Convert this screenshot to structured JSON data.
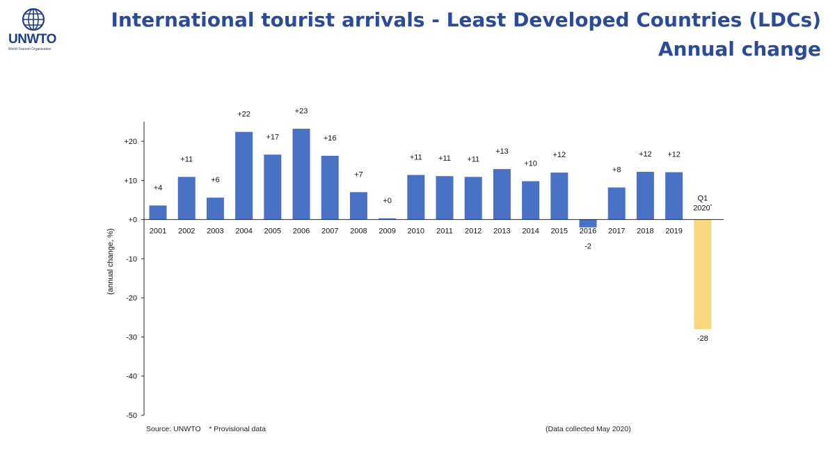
{
  "logo": {
    "text": "UNWTO",
    "subtitle": "World Tourism Organization",
    "icon": "globe-laurel-icon"
  },
  "title_line1": "International tourist arrivals - Least Developed Countries (LDCs)",
  "title_line2": "Annual change",
  "source": "Source: UNWTO",
  "note": "* Provisional data",
  "collected": "(Data collected May 2020)",
  "colors": {
    "bar": "#4a72c4",
    "highlight": "#f9d77c",
    "title": "#2a4a9a"
  },
  "chart_data": {
    "type": "bar",
    "categories": [
      "2001",
      "2002",
      "2003",
      "2004",
      "2005",
      "2006",
      "2007",
      "2008",
      "2009",
      "2010",
      "2011",
      "2012",
      "2013",
      "2014",
      "2015",
      "2016",
      "2017",
      "2018",
      "2019",
      "Q1 2020*"
    ],
    "values": [
      3.6,
      10.9,
      5.6,
      22.4,
      16.6,
      23.2,
      16.3,
      7.0,
      0.3,
      11.4,
      11.1,
      10.9,
      12.9,
      9.8,
      12.0,
      -2.0,
      8.2,
      12.2,
      12.1,
      -28.0
    ],
    "data_labels": [
      "+4",
      "+11",
      "+6",
      "+22",
      "+17",
      "+23",
      "+16",
      "+7",
      "+0",
      "+11",
      "+11",
      "+11",
      "+13",
      "+10",
      "+12",
      "-2",
      "+8",
      "+12",
      "+12",
      "-28"
    ],
    "highlight_index": 19,
    "ylabel": "(annual change, %)",
    "ylim": [
      -50,
      25
    ],
    "yticks": [
      20,
      10,
      0,
      -10,
      -20,
      -30,
      -40,
      -50
    ],
    "ytick_labels": [
      "+20",
      "+10",
      "+0",
      "-10",
      "-20",
      "-30",
      "-40",
      "-50"
    ],
    "grid": false
  }
}
